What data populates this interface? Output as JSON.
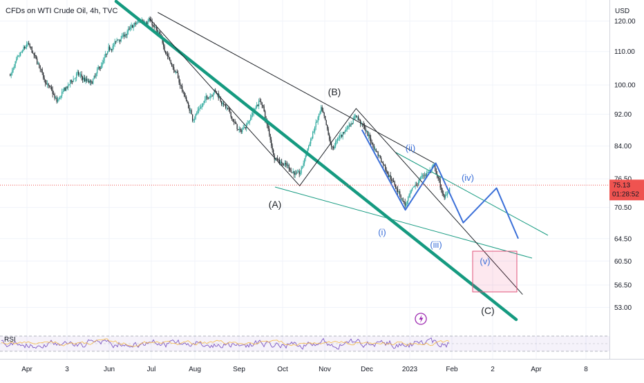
{
  "header": {
    "title": "CFDs on WTI Crude Oil, 4h, TVC"
  },
  "colors": {
    "up_candle": "#26a69a",
    "down_candle": "#1f2328",
    "trendline": "#159a80",
    "black_wave": "#1f2328",
    "blue_wave": "#3a6fd8",
    "target_box": "#e0527a",
    "price_tag": "#ef5350",
    "rsi_line": "#7e57c2"
  },
  "icons": {
    "alert": "lightning-alert-icon"
  },
  "chart_data": {
    "type": "candlestick",
    "currency": "USD",
    "y_scale": "log",
    "ylim": [
      50.5,
      123
    ],
    "y_ticks": [
      "120.00",
      "110.00",
      "100.00",
      "92.00",
      "84.00",
      "76.50",
      "70.50",
      "64.50",
      "60.50",
      "56.50",
      "53.00"
    ],
    "x_ticks": [
      "Apr",
      "3",
      "Jun",
      "Jul",
      "Aug",
      "Sep",
      "Oct",
      "Nov",
      "Dec",
      "2023",
      "Feb",
      "2",
      "Apr",
      "8"
    ],
    "current_price": {
      "value": "75.13",
      "countdown": "01:28:52"
    },
    "price_path": [
      [
        "2022-03-10",
        103
      ],
      [
        "2022-03-22",
        112
      ],
      [
        "2022-04-11",
        95
      ],
      [
        "2022-04-25",
        103
      ],
      [
        "2022-05-05",
        100
      ],
      [
        "2022-05-20",
        112
      ],
      [
        "2022-06-08",
        120
      ],
      [
        "2022-06-14",
        121
      ],
      [
        "2022-06-28",
        108
      ],
      [
        "2022-07-14",
        91
      ],
      [
        "2022-07-29",
        99
      ],
      [
        "2022-08-16",
        87
      ],
      [
        "2022-08-30",
        96
      ],
      [
        "2022-09-08",
        82
      ],
      [
        "2022-09-26",
        77
      ],
      [
        "2022-10-04",
        86
      ],
      [
        "2022-10-11",
        93
      ],
      [
        "2022-10-18",
        83
      ],
      [
        "2022-11-04",
        92
      ],
      [
        "2022-11-16",
        84
      ],
      [
        "2022-12-08",
        71
      ],
      [
        "2022-12-19",
        77
      ],
      [
        "2022-12-28",
        79
      ],
      [
        "2023-01-04",
        72
      ],
      [
        "2023-01-08",
        75.13
      ]
    ],
    "wave_labels": [
      "(A)",
      "(B)",
      "(C)",
      "(i)",
      "(ii)",
      "(iii)",
      "(iv)",
      "(v)"
    ],
    "black_wave_path": [
      [
        "2022-06-14",
        121
      ],
      [
        "2022-09-26",
        75
      ],
      [
        "2022-11-04",
        93.5
      ],
      [
        "2023-02-27",
        55
      ]
    ],
    "black_channel_upper": [
      [
        "2022-06-20",
        123
      ],
      [
        "2022-12-28",
        80
      ]
    ],
    "blue_wave_path": [
      [
        "2022-11-08",
        88
      ],
      [
        "2022-12-08",
        70
      ],
      [
        "2022-12-29",
        80
      ],
      [
        "2023-01-17",
        67.5
      ],
      [
        "2023-02-09",
        74.5
      ],
      [
        "2023-02-24",
        64.5
      ]
    ],
    "indicator": {
      "name": "RSI"
    }
  }
}
